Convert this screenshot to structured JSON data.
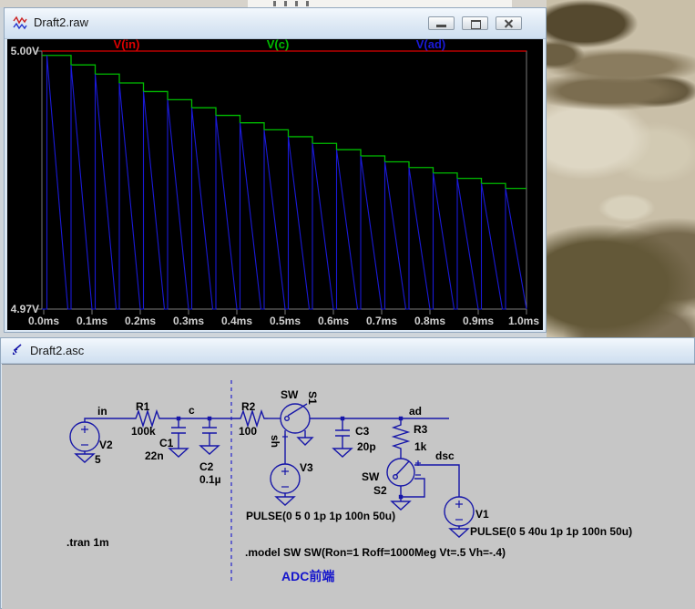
{
  "plot_window": {
    "title": "Draft2.raw",
    "icon": "waveform-icon",
    "y_top_label": "5.00V",
    "y_bottom_label": "4.97V"
  },
  "chart_data": {
    "type": "line",
    "title": "Draft2.raw transient simulation plot",
    "x_unit": "ms",
    "x_range_ms": [
      0.0,
      1.0
    ],
    "y_unit": "V",
    "y_range": [
      4.97,
      5.0
    ],
    "grid": false,
    "background": "#000000",
    "legend_position": "top",
    "x_tick_labels": [
      "0.0ms",
      "0.1ms",
      "0.2ms",
      "0.3ms",
      "0.4ms",
      "0.5ms",
      "0.6ms",
      "0.7ms",
      "0.8ms",
      "0.9ms",
      "1.0ms"
    ],
    "y_tick_labels": [
      "5.00V",
      "4.97V"
    ],
    "sample_period_us": 50,
    "series": [
      {
        "name": "V(in)",
        "color": "#dc0000",
        "shape": "constant",
        "value": 5.0
      },
      {
        "name": "V(c)",
        "color": "#00bc00",
        "shape": "staircase",
        "levels": [
          4.9995,
          4.99839,
          4.99732,
          4.99629,
          4.99529,
          4.99434,
          4.99341,
          4.99252,
          4.99166,
          4.99084,
          4.99004,
          4.98927,
          4.98853,
          4.98781,
          4.98712,
          4.98646,
          4.98582,
          4.9852,
          4.9846,
          4.98403
        ]
      },
      {
        "name": "V(ad)",
        "color": "#1a1ad8",
        "shape": "sample-and-discharge",
        "peaks_follow_series": "V(c)",
        "floor": 4.97,
        "discharge_us": 43
      }
    ]
  },
  "schematic_window": {
    "title": "Draft2.asc",
    "icon": "schematic-icon",
    "canvas_color": "#c6c6c6",
    "wire_color": "#1616a8",
    "net_labels": {
      "in": "in",
      "c": "c",
      "sh": "sh",
      "ad": "ad",
      "dsc": "dsc"
    },
    "parts": {
      "V2": {
        "name": "V2",
        "value": "5"
      },
      "R1": {
        "name": "R1",
        "value": "100k"
      },
      "C1": {
        "name": "C1",
        "value": "22n"
      },
      "C2": {
        "name": "C2",
        "value": "0.1µ"
      },
      "R2": {
        "name": "R2",
        "value": "100"
      },
      "S1": {
        "type": "SW",
        "name": "S1"
      },
      "V3": {
        "name": "V3",
        "value": "PULSE(0 5 0 1p 1p 100n 50u)"
      },
      "C3": {
        "name": "C3",
        "value": "20p"
      },
      "R3": {
        "name": "R3",
        "value": "1k"
      },
      "S2": {
        "type": "SW",
        "name": "S2"
      },
      "V1": {
        "name": "V1",
        "value": "PULSE(0 5 40u 1p 1p 100n 50u)"
      }
    },
    "directives": {
      "tran": ".tran 1m",
      "model": ".model SW SW(Ron=1 Roff=1000Meg Vt=.5 Vh=-.4)"
    },
    "comment": "ADC前端",
    "comment_color": "#1414cc"
  }
}
